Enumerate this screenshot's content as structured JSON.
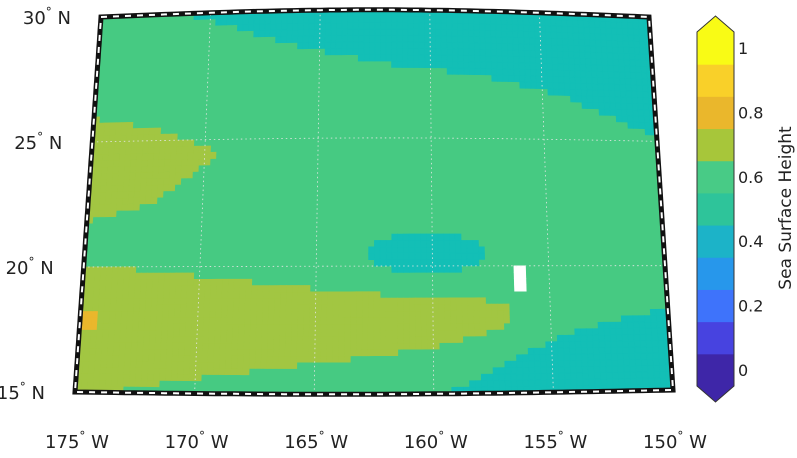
{
  "map": {
    "lat_labels": [
      {
        "deg": "30",
        "hemi": "N",
        "lat": 30
      },
      {
        "deg": "25",
        "hemi": "N",
        "lat": 25
      },
      {
        "deg": "20",
        "hemi": "N",
        "lat": 20
      },
      {
        "deg": "15",
        "hemi": "N",
        "lat": 15
      }
    ],
    "lon_labels": [
      {
        "deg": "175",
        "hemi": "W",
        "lon": -175
      },
      {
        "deg": "170",
        "hemi": "W",
        "lon": -170
      },
      {
        "deg": "165",
        "hemi": "W",
        "lon": -165
      },
      {
        "deg": "160",
        "hemi": "W",
        "lon": -160
      },
      {
        "deg": "155",
        "hemi": "W",
        "lon": -155
      },
      {
        "deg": "150",
        "hemi": "W",
        "lon": -150
      }
    ],
    "extent": {
      "lon_min": -175,
      "lon_max": -150,
      "lat_min": 15,
      "lat_max": 30
    },
    "gridlines": "dotted",
    "frame_style": "black-white dashed"
  },
  "colorbar": {
    "title": "Sea Surface Height",
    "ticks": [
      "0",
      "0.2",
      "0.4",
      "0.6",
      "0.8",
      "1"
    ],
    "tick_values": [
      0,
      0.2,
      0.4,
      0.6,
      0.8,
      1.0
    ],
    "range": [
      0,
      1
    ],
    "extend": "both",
    "colors": [
      "#3e26a8",
      "#4743e0",
      "#3e73fb",
      "#2797eb",
      "#1cb3c8",
      "#2ec49a",
      "#48cb86",
      "#a7c63a",
      "#eab72c",
      "#f9d029",
      "#f9fb15"
    ],
    "under_color": "#3e26a8",
    "over_color": "#f9fb15"
  },
  "field": {
    "colors": {
      "teal": "#13bfb6",
      "green": "#46ca82",
      "olive": "#a2c642",
      "gold": "#eab72c",
      "missing": "#ffffff"
    },
    "background": "green"
  }
}
